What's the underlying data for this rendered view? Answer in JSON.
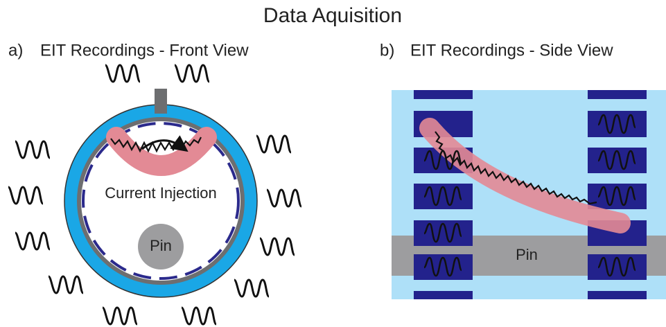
{
  "title": "Data Aquisition",
  "panels": [
    {
      "label": "a)",
      "title": "EIT Recordings - Front View",
      "annotations": [
        "Current Injection",
        "Pin"
      ]
    },
    {
      "label": "b)",
      "title": "EIT Recordings - Side View",
      "annotations": [
        "Pin"
      ]
    }
  ]
}
